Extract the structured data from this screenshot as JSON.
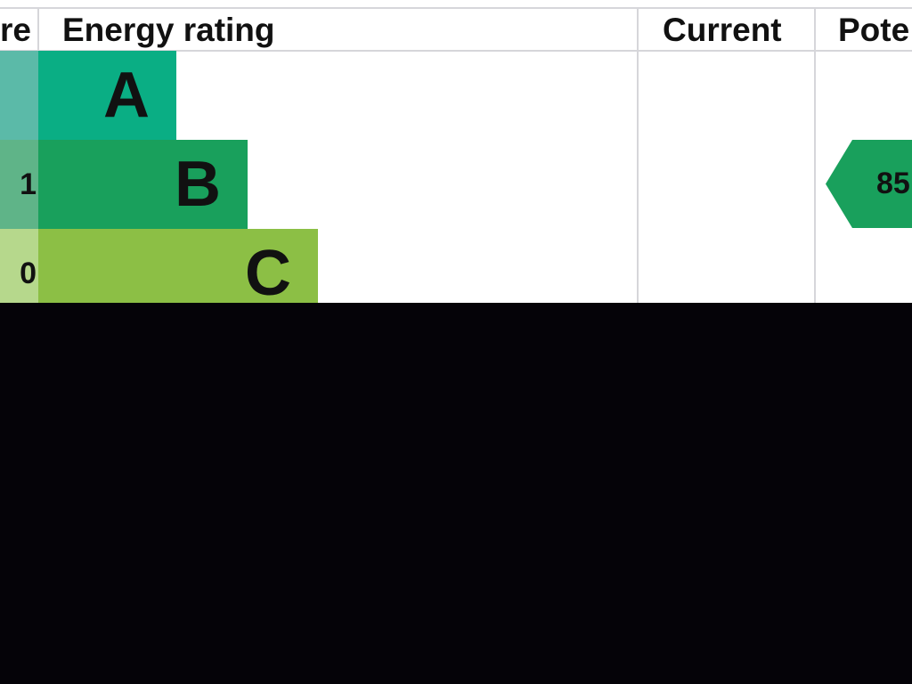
{
  "chart_data": {
    "type": "bar",
    "headers": {
      "score": "re",
      "rating": "Energy rating",
      "current": "Current",
      "potential": "Pote"
    },
    "bands": [
      {
        "score": "",
        "label": "A",
        "color": "#0aae84",
        "score_color": "#5bbaa8"
      },
      {
        "score": "1",
        "label": "B",
        "color": "#19a05c",
        "score_color": "#5fb488"
      },
      {
        "score": "0",
        "label": "C",
        "color": "#8cbf45",
        "score_color": "#b6d88c"
      }
    ],
    "current": null,
    "potential": {
      "value": "85",
      "band": "B",
      "color": "#19a05c"
    }
  }
}
